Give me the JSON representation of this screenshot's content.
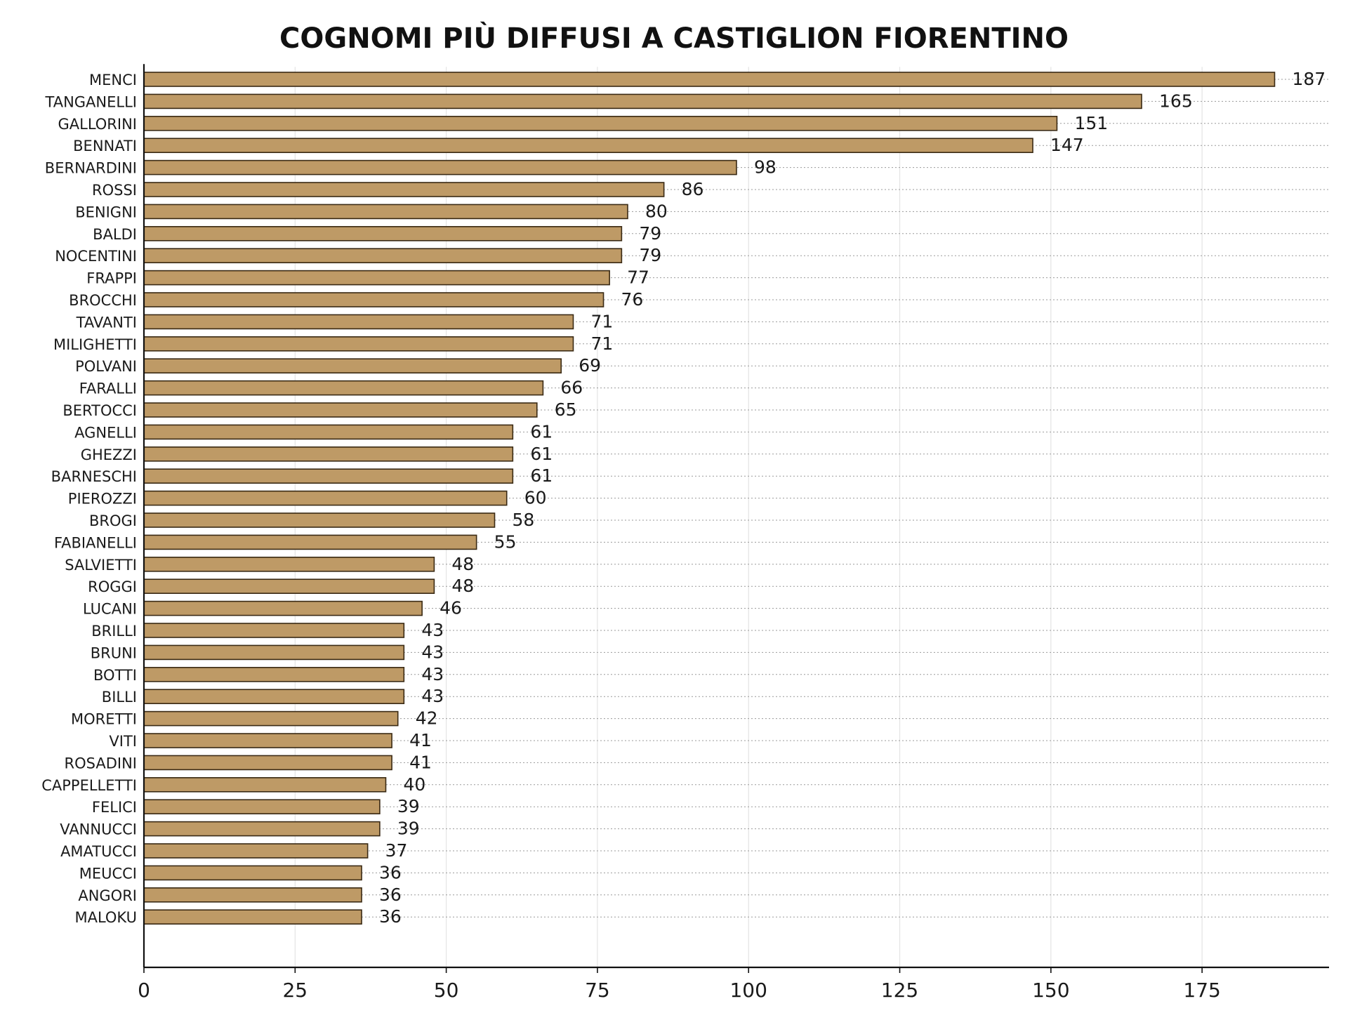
{
  "chart_data": {
    "type": "bar",
    "orientation": "horizontal",
    "title": "COGNOMI PIÙ DIFFUSI A CASTIGLION FIORENTINO",
    "xlabel": "",
    "ylabel": "",
    "xlim": [
      0,
      196
    ],
    "xticks": [
      0,
      25,
      50,
      75,
      100,
      125,
      150,
      175
    ],
    "grid": true,
    "categories": [
      "MENCI",
      "TANGANELLI",
      "GALLORINI",
      "BENNATI",
      "BERNARDINI",
      "ROSSI",
      "BENIGNI",
      "BALDI",
      "NOCENTINI",
      "FRAPPI",
      "BROCCHI",
      "TAVANTI",
      "MILIGHETTI",
      "POLVANI",
      "FARALLI",
      "BERTOCCI",
      "AGNELLI",
      "GHEZZI",
      "BARNESCHI",
      "PIEROZZI",
      "BROGI",
      "FABIANELLI",
      "SALVIETTI",
      "ROGGI",
      "LUCANI",
      "BRILLI",
      "BRUNI",
      "BOTTI",
      "BILLI",
      "MORETTI",
      "VITI",
      "ROSADINI",
      "CAPPELLETTI",
      "FELICI",
      "VANNUCCI",
      "AMATUCCI",
      "MEUCCI",
      "ANGORI",
      "MALOKU"
    ],
    "values": [
      187,
      165,
      151,
      147,
      98,
      86,
      80,
      79,
      79,
      77,
      76,
      71,
      71,
      69,
      66,
      65,
      61,
      61,
      61,
      60,
      58,
      55,
      48,
      48,
      46,
      43,
      43,
      43,
      43,
      42,
      41,
      41,
      40,
      39,
      39,
      37,
      36,
      36,
      36
    ],
    "bar_color": "#BE9A66",
    "bar_edge_color": "#3a2a14"
  }
}
